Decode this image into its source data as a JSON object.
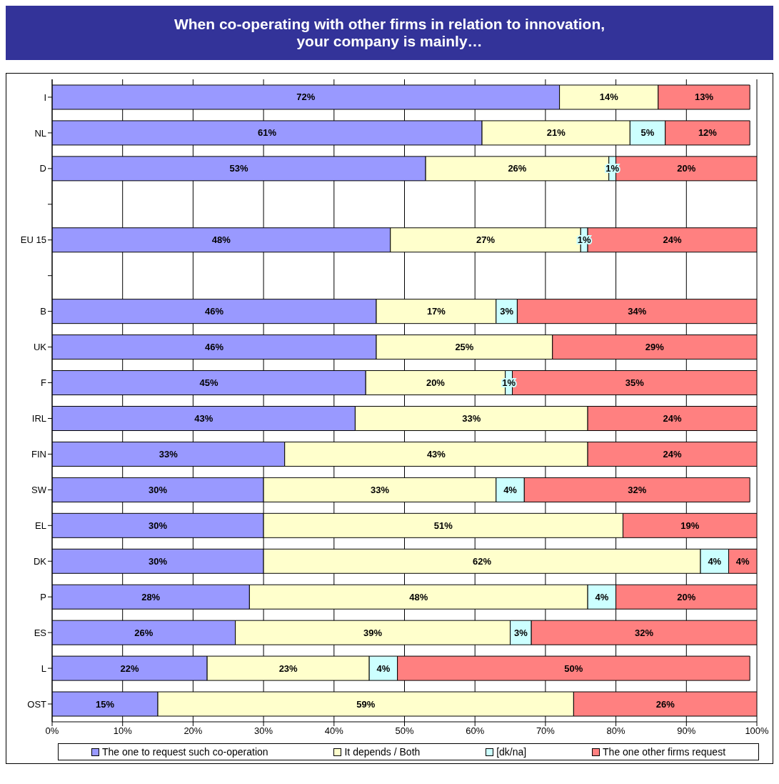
{
  "chart_data": {
    "type": "bar",
    "orientation": "horizontal",
    "stacked": true,
    "title": "When co-operating with other firms in relation to innovation,\nyour company is mainly…",
    "categories": [
      "I",
      "NL",
      "D",
      null,
      "EU 15",
      null,
      "B",
      "UK",
      "F",
      "IRL",
      "FIN",
      "SW",
      "EL",
      "DK",
      "P",
      "ES",
      "L",
      "OST"
    ],
    "series": [
      {
        "name": "The one to request such co-operation",
        "color": "#9999ff",
        "values": [
          72,
          61,
          53,
          null,
          48,
          null,
          46,
          46,
          44.5,
          43,
          33,
          30,
          30,
          30,
          28,
          26,
          22,
          15
        ],
        "value_labels": [
          "72%",
          "61%",
          "53%",
          null,
          "48%",
          null,
          "46%",
          "46%",
          "45%",
          "43%",
          "33%",
          "30%",
          "30%",
          "30%",
          "28%",
          "26%",
          "22%",
          "15%"
        ]
      },
      {
        "name": "It depends / Both",
        "color": "#ffffcc",
        "values": [
          14,
          21,
          26,
          null,
          27,
          null,
          17,
          25,
          19.8,
          33,
          43,
          33,
          51,
          62,
          48,
          39,
          23,
          59
        ],
        "value_labels": [
          "14%",
          "21%",
          "26%",
          null,
          "27%",
          null,
          "17%",
          "25%",
          "20%",
          "33%",
          "43%",
          "33%",
          "51%",
          "62%",
          "48%",
          "39%",
          "23%",
          "59%"
        ]
      },
      {
        "name": "[dk/na]",
        "color": "#ccffff",
        "values": [
          null,
          5,
          1,
          null,
          1,
          null,
          3,
          null,
          1,
          null,
          null,
          4,
          null,
          4,
          4,
          3,
          4,
          null
        ],
        "value_labels": [
          null,
          "5%",
          "1%",
          null,
          "1%",
          null,
          "3%",
          null,
          "1%",
          null,
          null,
          "4%",
          null,
          "4%",
          "4%",
          "3%",
          "4%",
          null
        ]
      },
      {
        "name": "The one other firms request",
        "color": "#ff8080",
        "values": [
          13,
          12,
          20,
          null,
          24,
          null,
          34,
          29,
          34.7,
          24,
          24,
          32,
          19,
          4,
          20,
          32,
          50,
          26
        ],
        "value_labels": [
          "13%",
          "12%",
          "20%",
          null,
          "24%",
          null,
          "34%",
          "29%",
          "35%",
          "24%",
          "24%",
          "32%",
          "19%",
          "4%",
          "20%",
          "32%",
          "50%",
          "26%"
        ]
      }
    ],
    "xlim": [
      0,
      100
    ],
    "xticks": [
      {
        "value": 0,
        "label": "0%"
      },
      {
        "value": 10,
        "label": "10%"
      },
      {
        "value": 20,
        "label": "20%"
      },
      {
        "value": 30,
        "label": "30%"
      },
      {
        "value": 40,
        "label": "40%"
      },
      {
        "value": 50,
        "label": "50%"
      },
      {
        "value": 60,
        "label": "60%"
      },
      {
        "value": 70,
        "label": "70%"
      },
      {
        "value": 80,
        "label": "80%"
      },
      {
        "value": 90,
        "label": "90%"
      },
      {
        "value": 100,
        "label": "100%"
      }
    ],
    "grid": "x",
    "legend": "bottom"
  }
}
